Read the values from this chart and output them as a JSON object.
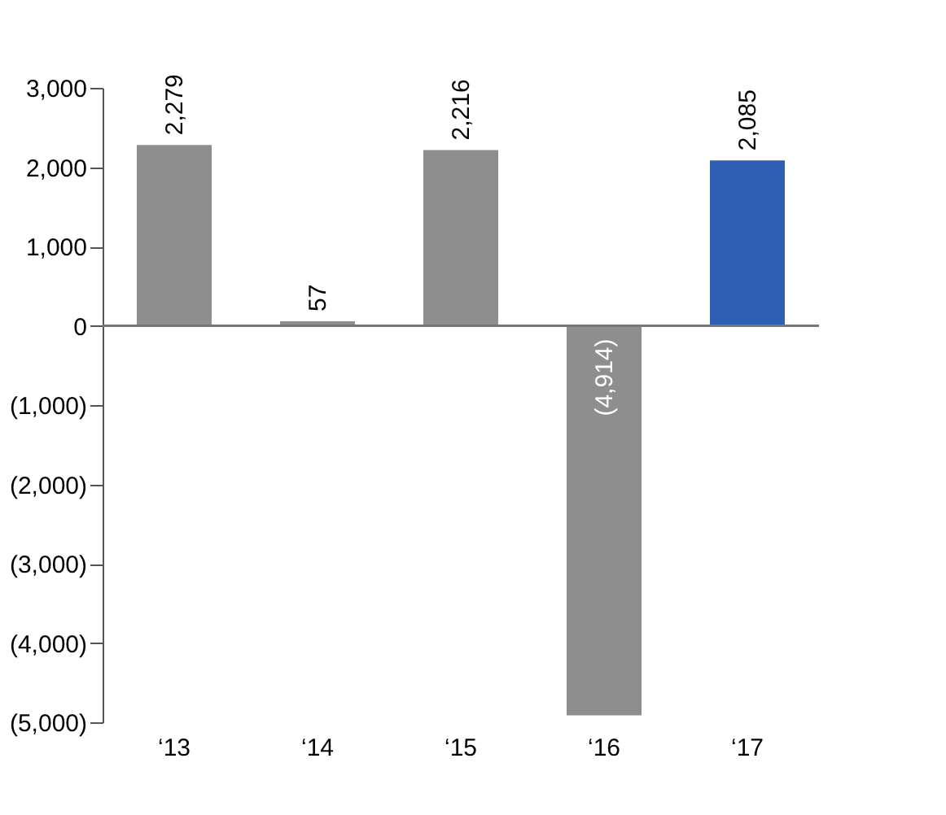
{
  "chart_data": {
    "type": "bar",
    "categories": [
      "‘13",
      "‘14",
      "‘15",
      "‘16",
      "‘17"
    ],
    "values": [
      2279,
      57,
      2216,
      -4914,
      2085
    ],
    "colors": [
      "#8e8e8e",
      "#8e8e8e",
      "#8e8e8e",
      "#8e8e8e",
      "#2f5fb3"
    ],
    "value_labels": [
      "2,279",
      "57",
      "2,216",
      "(4,914)",
      "2,085"
    ],
    "ylim": [
      -5000,
      3000
    ],
    "yticks": [
      {
        "value": -5000,
        "label": "(5,000)"
      },
      {
        "value": -4000,
        "label": "(4,000)"
      },
      {
        "value": -3000,
        "label": "(3,000)"
      },
      {
        "value": -2000,
        "label": "(2,000)"
      },
      {
        "value": -1000,
        "label": "(1,000)"
      },
      0,
      {
        "value": 1000,
        "label": "1,000"
      },
      {
        "value": 2000,
        "label": "2,000"
      },
      {
        "value": 3000,
        "label": "3,000"
      }
    ],
    "tick_labels": "xy"
  }
}
